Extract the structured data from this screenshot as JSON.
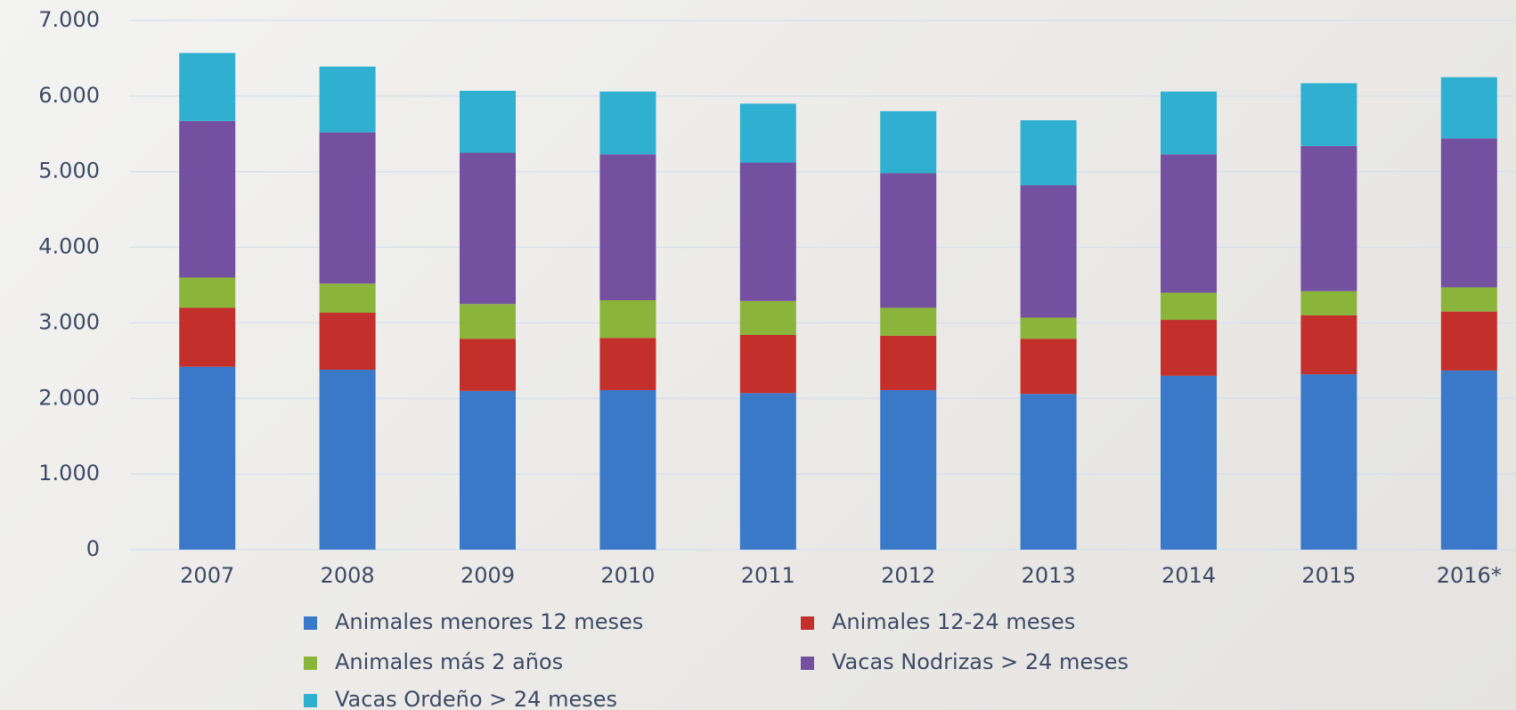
{
  "chart_data": {
    "type": "stacked_bar",
    "categories": [
      "2007",
      "2008",
      "2009",
      "2010",
      "2011",
      "2012",
      "2013",
      "2014",
      "2015",
      "2016*"
    ],
    "series": [
      {
        "name": "Animales menores 12 meses",
        "color": "#3a78c8",
        "values": [
          2420,
          2380,
          2100,
          2110,
          2070,
          2110,
          2060,
          2300,
          2320,
          2370
        ]
      },
      {
        "name": "Animales 12-24 meses",
        "color": "#c3302c",
        "values": [
          780,
          755,
          690,
          690,
          770,
          720,
          730,
          740,
          780,
          780
        ]
      },
      {
        "name": "Animales más 2 años",
        "color": "#8ab43a",
        "values": [
          400,
          385,
          460,
          500,
          450,
          370,
          280,
          360,
          320,
          320
        ]
      },
      {
        "name": "Vacas Nodrizas > 24 meses",
        "color": "#7450a0",
        "values": [
          2070,
          2000,
          2000,
          1930,
          1830,
          1780,
          1750,
          1830,
          1920,
          1970
        ]
      },
      {
        "name": "Vacas Ordeño > 24 meses",
        "color": "#2fb0d0",
        "values": [
          900,
          870,
          820,
          830,
          780,
          820,
          860,
          830,
          830,
          810
        ]
      }
    ],
    "ylim": [
      0,
      7000
    ],
    "yticks": [
      0,
      {
        "value": 1000,
        "label": "1.000"
      },
      {
        "value": 2000,
        "label": "2.000"
      },
      {
        "value": 3000,
        "label": "3.000"
      },
      {
        "value": 4000,
        "label": "4.000"
      },
      {
        "value": 5000,
        "label": "5.000"
      },
      {
        "value": 6000,
        "label": "6.000"
      },
      {
        "value": 7000,
        "label": "7.000"
      }
    ],
    "grid": true
  }
}
